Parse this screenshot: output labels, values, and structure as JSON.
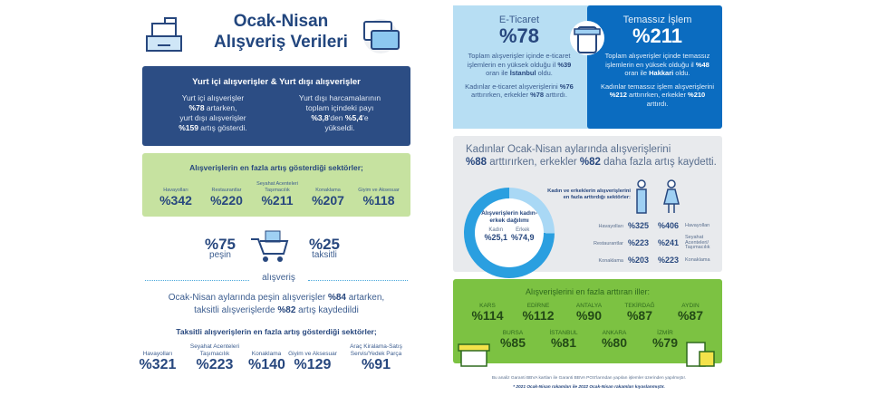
{
  "header": {
    "title_line1": "Ocak-Nisan",
    "title_line2": "Alışveriş Verileri"
  },
  "domestic": {
    "title": "Yurt içi alışverişler & Yurt dışı alışverişler",
    "left": [
      "Yurt içi alışverişler",
      "%78",
      " artarken,",
      "yurt dışı alışverişler",
      "%159",
      " artış gösterdi."
    ],
    "right": [
      "Yurt dışı harcamalarının",
      "toplam içindeki payı",
      "%3,8",
      "'den ",
      "%5,4",
      "'e",
      "yükseldi."
    ]
  },
  "top_sectors": {
    "title": "Alışverişlerin en fazla artış gösterdiği sektörler;",
    "items": [
      {
        "label": "Havayolları",
        "value": "%342"
      },
      {
        "label": "Restaurantlar",
        "value": "%220"
      },
      {
        "label": "Seyahat Acenteleri Taşımacılık",
        "value": "%211"
      },
      {
        "label": "Konaklama",
        "value": "%207"
      },
      {
        "label": "Giyim ve Aksesuar",
        "value": "%118"
      }
    ]
  },
  "payment": {
    "cash_value": "%75",
    "cash_label": "peşin",
    "inst_value": "%25",
    "inst_label": "taksitli",
    "caption": "alışveriş",
    "text": [
      "Ocak-Nisan aylarında peşin alışverişler ",
      "%84",
      " artarken,",
      "taksitli alışverişlerde ",
      "%82",
      " artış kaydedildi"
    ]
  },
  "inst_sectors": {
    "title": "Taksitli alışverişlerin en fazla artış gösterdiği sektörler;",
    "items": [
      {
        "label": "Havayolları",
        "value": "%321"
      },
      {
        "label": "Seyahat Acenteleri Taşımacılık",
        "value": "%223"
      },
      {
        "label": "Konaklama",
        "value": "%140"
      },
      {
        "label": "Giyim ve Aksesuar",
        "value": "%129"
      },
      {
        "label": "Araç Kiralama-Satış Servis/Yedek Parça",
        "value": "%91"
      }
    ]
  },
  "ecommerce": {
    "title": "E-Ticaret",
    "value": "%78",
    "p1": [
      "Toplam alışverişler içinde e-ticaret işlemlerin en yüksek olduğu il ",
      "%39",
      " oran ile ",
      "İstanbul",
      " oldu."
    ],
    "p2": [
      "Kadınlar e-ticaret alışverişlerini ",
      "%76",
      " arttırırken, erkekler ",
      "%78",
      " arttırdı."
    ]
  },
  "contactless": {
    "title": "Temassız İşlem",
    "value": "%211",
    "p1": [
      "Toplam alışverişler içinde temassız işlemlerin en yüksek olduğu il ",
      "%48",
      " oran ile ",
      "Hakkari",
      " oldu."
    ],
    "p2": [
      "Kadınlar temassız işlem alışverişlerini ",
      "%212",
      " arttırırken, erkekler ",
      "%210",
      " arttırdı."
    ]
  },
  "gender": {
    "head": [
      "Kadınlar Ocak-Nisan aylarında alışverişlerini ",
      "%88",
      " arttırırken, erkekler ",
      "%82",
      " daha fazla artış kaydetti."
    ],
    "donut_title": "Alışverişlerin kadın-erkek dağılımı",
    "female_label": "Kadın",
    "female_value": "%25,1",
    "male_label": "Erkek",
    "male_value": "%74,9",
    "sectors_title": "Kadın ve erkeklerin alışverişlerini en fazla arttırdığı sektörler:",
    "rows": [
      {
        "m_label": "Havayolları",
        "m_value": "%325",
        "f_value": "%406",
        "f_label": "Havayolları"
      },
      {
        "m_label": "Restaurantlar",
        "m_value": "%223",
        "f_value": "%241",
        "f_label": "Seyahat Acenteleri/ Taşımacılık"
      },
      {
        "m_label": "Konaklama",
        "m_value": "%203",
        "f_value": "%223",
        "f_label": "Konaklama"
      }
    ],
    "colors": {
      "female": "#a9d8f5",
      "male": "#2a9fe0"
    }
  },
  "cities": {
    "title": "Alışverişlerini en fazla arttıran iller:",
    "row1": [
      {
        "name": "KARS",
        "value": "%114"
      },
      {
        "name": "EDİRNE",
        "value": "%112"
      },
      {
        "name": "ANTALYA",
        "value": "%90"
      },
      {
        "name": "TEKİRDAĞ",
        "value": "%87"
      },
      {
        "name": "AYDIN",
        "value": "%87"
      }
    ],
    "row2": [
      {
        "name": "BURSA",
        "value": "%85"
      },
      {
        "name": "İSTANBUL",
        "value": "%81"
      },
      {
        "name": "ANKARA",
        "value": "%80"
      },
      {
        "name": "İZMİR",
        "value": "%79"
      }
    ]
  },
  "footer": {
    "line1": "Bu analiz Garanti BBVA kartları ile Garanti BBVA POS'larından yapılan işlemler üzerinden yapılmıştır.",
    "line2": "* 2021 Ocak-Nisan rakamları ile 2022 Ocak-Nisan rakamları kıyaslanmıştır."
  }
}
